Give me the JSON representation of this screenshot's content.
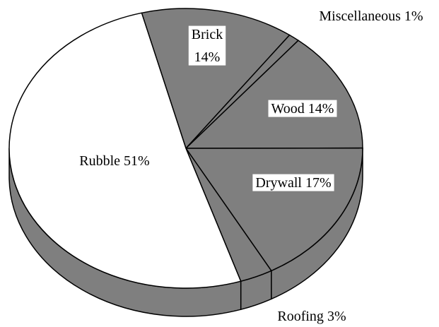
{
  "chart_data": {
    "type": "pie",
    "categories": [
      "Brick",
      "Miscellaneous",
      "Wood",
      "Drywall",
      "Roofing",
      "Rubble"
    ],
    "values": [
      14,
      1,
      14,
      17,
      3,
      51
    ],
    "value_labels": [
      "14%",
      "1%",
      "14%",
      "17%",
      "3%",
      "51%"
    ],
    "colors": [
      "#7f7f7f",
      "#7f7f7f",
      "#7f7f7f",
      "#7f7f7f",
      "#7f7f7f",
      "#ffffff"
    ],
    "side_color": "#7f7f7f"
  }
}
